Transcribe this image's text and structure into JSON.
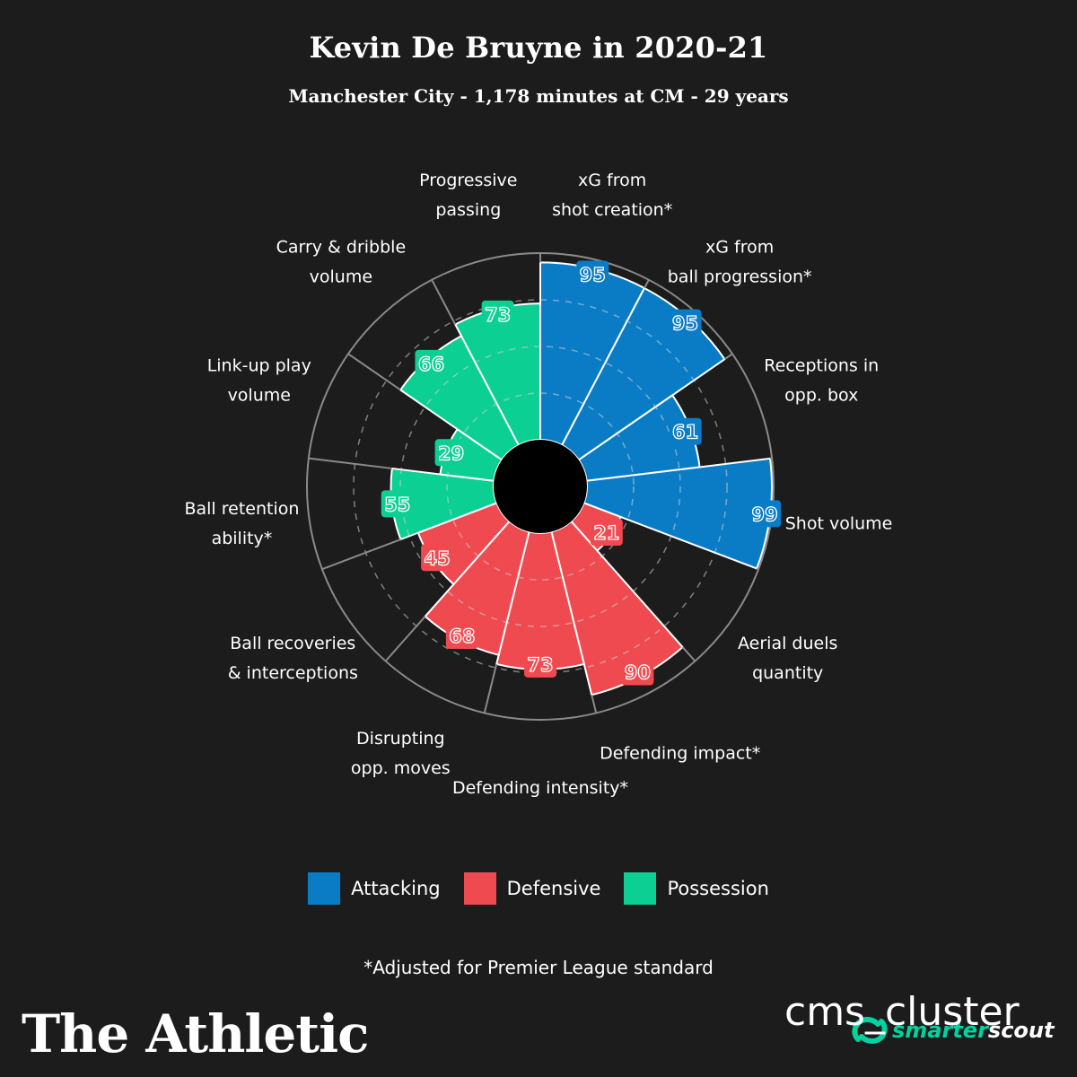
{
  "header": {
    "title": "Kevin De Bruyne in 2020-21",
    "subtitle": "Manchester City - 1,178 minutes at CM - 29 years"
  },
  "chart_data": {
    "type": "polar-bar",
    "range": [
      0,
      100
    ],
    "categories": [
      {
        "label": [
          "xG from",
          "shot creation*"
        ],
        "value": 95,
        "group": "Attacking"
      },
      {
        "label": [
          "xG from",
          "ball progression*"
        ],
        "value": 95,
        "group": "Attacking"
      },
      {
        "label": [
          "Receptions in",
          "opp. box"
        ],
        "value": 61,
        "group": "Attacking"
      },
      {
        "label": [
          "Shot volume"
        ],
        "value": 99,
        "group": "Attacking"
      },
      {
        "label": [
          "Aerial duels",
          "quantity"
        ],
        "value": 21,
        "group": "Defensive"
      },
      {
        "label": [
          "Defending impact*"
        ],
        "value": 90,
        "group": "Defensive"
      },
      {
        "label": [
          "Defending intensity*"
        ],
        "value": 73,
        "group": "Defensive"
      },
      {
        "label": [
          "Disrupting",
          "opp. moves"
        ],
        "value": 68,
        "group": "Defensive"
      },
      {
        "label": [
          "Ball recoveries",
          "& interceptions"
        ],
        "value": 45,
        "group": "Defensive"
      },
      {
        "label": [
          "Ball retention",
          "ability*"
        ],
        "value": 55,
        "group": "Possession"
      },
      {
        "label": [
          "Link-up play",
          "volume"
        ],
        "value": 29,
        "group": "Possession"
      },
      {
        "label": [
          "Carry & dribble",
          "volume"
        ],
        "value": 66,
        "group": "Possession"
      },
      {
        "label": [
          "Progressive",
          "passing"
        ],
        "value": 73,
        "group": "Possession"
      }
    ],
    "colors": {
      "Attacking": "#0a7cc6",
      "Defensive": "#ef4a4f",
      "Possession": "#0ccf94"
    }
  },
  "legend": {
    "items": [
      {
        "label": "Attacking",
        "color": "#0a7cc6"
      },
      {
        "label": "Defensive",
        "color": "#ef4a4f"
      },
      {
        "label": "Possession",
        "color": "#0ccf94"
      }
    ]
  },
  "footnote": "*Adjusted for Premier League standard",
  "brand": {
    "logo_text": "The Athletic",
    "partner_text_a": "smarter",
    "partner_text_b": "scout",
    "partner_icon": "smarterscout-logo-icon"
  },
  "watermark": "cms_cluster"
}
